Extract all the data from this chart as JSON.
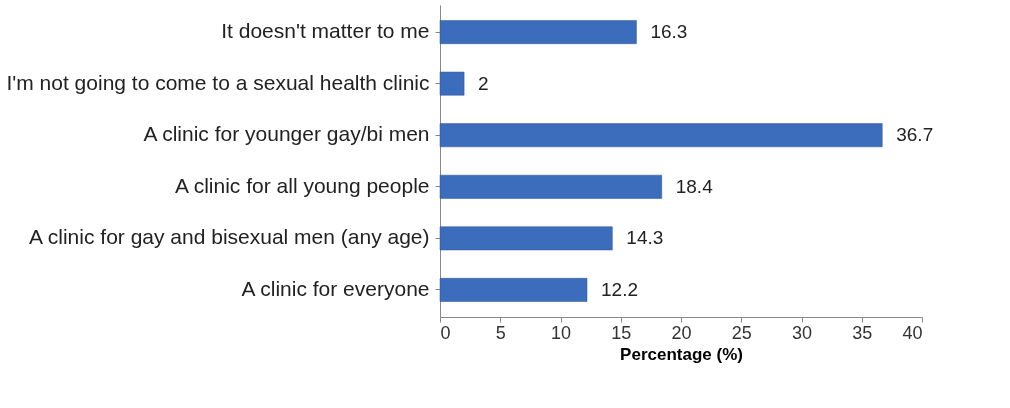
{
  "chart_data": {
    "type": "bar",
    "orientation": "horizontal",
    "xlabel": "Percentage (%)",
    "categories": [
      "It doesn't matter to me",
      "I'm not going to come to a sexual health clinic",
      "A clinic for younger gay/bi men",
      "A clinic for all young people",
      "A clinic for gay and bisexual men (any age)",
      "A clinic for everyone"
    ],
    "values": [
      16.3,
      2,
      36.7,
      18.4,
      14.3,
      12.2
    ],
    "color": "#3c6cbc",
    "xlim": [
      0,
      40
    ],
    "xticks": [
      0,
      5,
      10,
      15,
      20,
      25,
      30,
      35,
      40
    ],
    "data_labels": true,
    "grid": false
  }
}
